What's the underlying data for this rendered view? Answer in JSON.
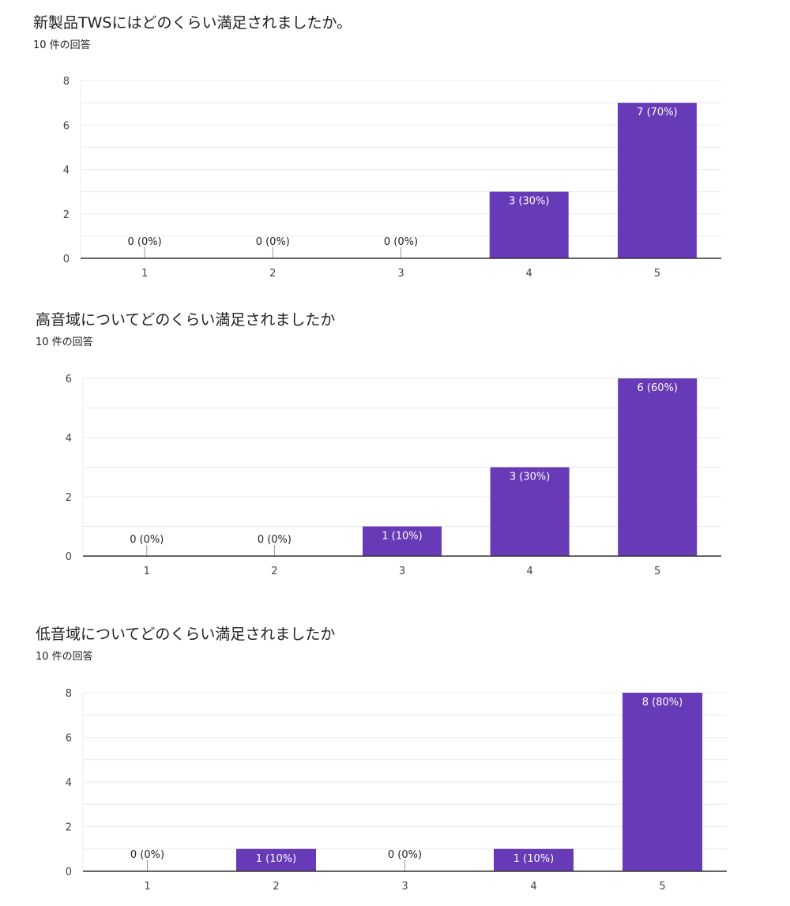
{
  "colors": {
    "bar": "#673ab7",
    "bar_label_inside": "#ffffff",
    "label_outside": "#212121",
    "grid": "#ebebeb",
    "axis": "#333333",
    "tick": "#444444"
  },
  "charts": [
    {
      "title": "新製品TWSにはどのくらい満足されましたか。",
      "responses": "10 件の回答"
    },
    {
      "title": "高音域についてどのくらい満足されましたか",
      "responses": "10 件の回答"
    },
    {
      "title": "低音域についてどのくらい満足されましたか",
      "responses": "10 件の回答"
    }
  ],
  "chart_data": [
    {
      "type": "bar",
      "title": "新製品TWSにはどのくらい満足されましたか。",
      "categories": [
        "1",
        "2",
        "3",
        "4",
        "5"
      ],
      "values": [
        0,
        0,
        0,
        3,
        7
      ],
      "data_labels": [
        "0 (0%)",
        "0 (0%)",
        "0 (0%)",
        "3 (30%)",
        "7 (70%)"
      ],
      "y_ticks": [
        0,
        2,
        4,
        6,
        8
      ],
      "ylim": [
        0,
        8
      ],
      "grid": true,
      "legend": "none"
    },
    {
      "type": "bar",
      "title": "高音域についてどのくらい満足されましたか",
      "categories": [
        "1",
        "2",
        "3",
        "4",
        "5"
      ],
      "values": [
        0,
        0,
        1,
        3,
        6
      ],
      "data_labels": [
        "0 (0%)",
        "0 (0%)",
        "1 (10%)",
        "3 (30%)",
        "6 (60%)"
      ],
      "y_ticks": [
        0,
        2,
        4,
        6
      ],
      "ylim": [
        0,
        6
      ],
      "grid": true,
      "legend": "none"
    },
    {
      "type": "bar",
      "title": "低音域についてどのくらい満足されましたか",
      "categories": [
        "1",
        "2",
        "3",
        "4",
        "5"
      ],
      "values": [
        0,
        1,
        0,
        1,
        8
      ],
      "data_labels": [
        "0 (0%)",
        "1 (10%)",
        "0 (0%)",
        "1 (10%)",
        "8 (80%)"
      ],
      "y_ticks": [
        0,
        2,
        4,
        6,
        8
      ],
      "ylim": [
        0,
        8
      ],
      "grid": true,
      "legend": "none"
    }
  ]
}
